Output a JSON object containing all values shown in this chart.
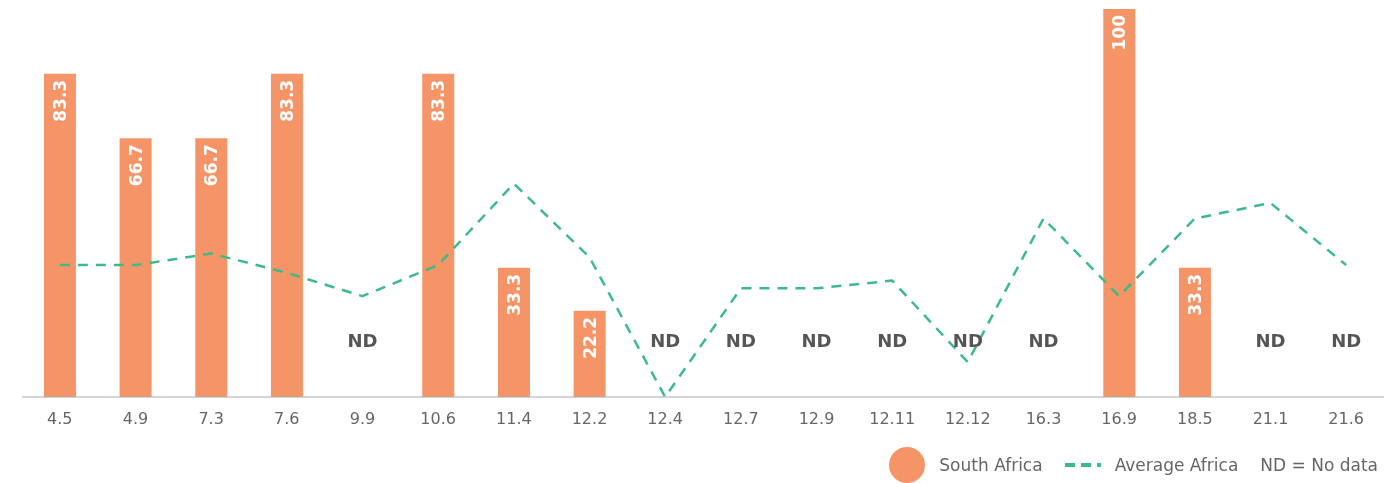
{
  "chart_data": {
    "type": "bar",
    "categories": [
      "4.5",
      "4.9",
      "7.3",
      "7.6",
      "9.9",
      "10.6",
      "11.4",
      "12.2",
      "12.4",
      "12.7",
      "12.9",
      "12.11",
      "12.12",
      "16.3",
      "16.9",
      "18.5",
      "21.1",
      "21.6"
    ],
    "series": [
      {
        "name": "South Africa",
        "color": "#f59467",
        "values": [
          83.3,
          66.7,
          66.7,
          83.3,
          null,
          83.3,
          33.3,
          22.2,
          null,
          null,
          null,
          null,
          null,
          null,
          100,
          33.3,
          null,
          null
        ],
        "value_labels": [
          "83.3",
          "66.7",
          "66.7",
          "83.3",
          "ND",
          "83.3",
          "33.3",
          "22.2",
          "ND",
          "ND",
          "ND",
          "ND",
          "ND",
          "ND",
          "100",
          "33.3",
          "ND",
          "ND"
        ]
      },
      {
        "name": "Average Africa",
        "type": "line",
        "color": "#3dba8a",
        "line_style": "dashed",
        "values": [
          34,
          34,
          37,
          32,
          26,
          34,
          55,
          36,
          0,
          28,
          28,
          30,
          9,
          46,
          26,
          46,
          50,
          34
        ]
      }
    ],
    "ylim": [
      0,
      100
    ],
    "tick_labels": "x",
    "legend": "bottom right",
    "annotations": [
      "ND = No data"
    ]
  }
}
